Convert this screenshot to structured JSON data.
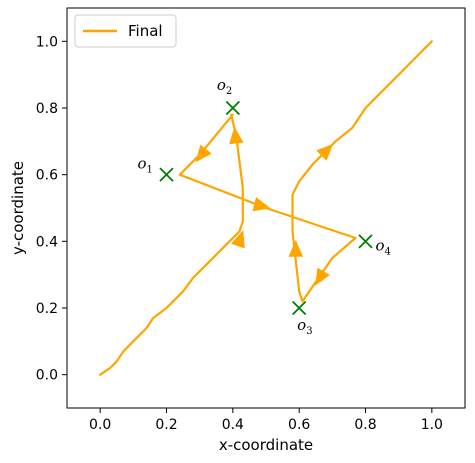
{
  "chart_data": {
    "type": "line",
    "title": "",
    "xlabel": "x-coordinate",
    "ylabel": "y-coordinate",
    "xlim": [
      -0.1,
      1.1
    ],
    "ylim": [
      -0.1,
      1.1
    ],
    "xticks": [
      "0.0",
      "0.2",
      "0.4",
      "0.6",
      "0.8",
      "1.0"
    ],
    "yticks": [
      "0.0",
      "0.2",
      "0.4",
      "0.6",
      "0.8",
      "1.0"
    ],
    "grid": false,
    "legend": {
      "position": "top-left",
      "entries": [
        "Final"
      ]
    },
    "series": [
      {
        "name": "Final",
        "color": "#FFA500",
        "points": [
          [
            0.0,
            0.0
          ],
          [
            0.03,
            0.02
          ],
          [
            0.05,
            0.04
          ],
          [
            0.07,
            0.07
          ],
          [
            0.1,
            0.1
          ],
          [
            0.14,
            0.14
          ],
          [
            0.16,
            0.17
          ],
          [
            0.2,
            0.2
          ],
          [
            0.25,
            0.25
          ],
          [
            0.28,
            0.29
          ],
          [
            0.32,
            0.33
          ],
          [
            0.36,
            0.37
          ],
          [
            0.42,
            0.43
          ],
          [
            0.43,
            0.46
          ],
          [
            0.43,
            0.56
          ],
          [
            0.41,
            0.72
          ],
          [
            0.395,
            0.78
          ],
          [
            0.4,
            0.78
          ],
          [
            0.3,
            0.66
          ],
          [
            0.24,
            0.6
          ],
          [
            0.5,
            0.5
          ],
          [
            0.77,
            0.41
          ],
          [
            0.7,
            0.35
          ],
          [
            0.61,
            0.22
          ],
          [
            0.6,
            0.25
          ],
          [
            0.58,
            0.43
          ],
          [
            0.58,
            0.54
          ],
          [
            0.6,
            0.58
          ],
          [
            0.64,
            0.63
          ],
          [
            0.71,
            0.7
          ],
          [
            0.76,
            0.74
          ],
          [
            0.8,
            0.8
          ],
          [
            0.85,
            0.85
          ],
          [
            0.9,
            0.9
          ],
          [
            0.95,
            0.95
          ],
          [
            1.0,
            1.0
          ]
        ]
      }
    ],
    "arrows": [
      {
        "from": [
          0.42,
          0.4
        ],
        "to": [
          0.43,
          0.43
        ]
      },
      {
        "from": [
          0.41,
          0.7
        ],
        "to": [
          0.405,
          0.74
        ]
      },
      {
        "from": [
          0.33,
          0.69
        ],
        "to": [
          0.29,
          0.64
        ]
      },
      {
        "from": [
          0.45,
          0.515
        ],
        "to": [
          0.51,
          0.5
        ]
      },
      {
        "from": [
          0.68,
          0.32
        ],
        "to": [
          0.65,
          0.27
        ]
      },
      {
        "from": [
          0.59,
          0.36
        ],
        "to": [
          0.59,
          0.4
        ]
      },
      {
        "from": [
          0.66,
          0.65
        ],
        "to": [
          0.7,
          0.69
        ]
      }
    ],
    "marker_color": "#008000",
    "observations": [
      {
        "label": "o",
        "sub": "1",
        "x": 0.2,
        "y": 0.6
      },
      {
        "label": "o",
        "sub": "2",
        "x": 0.4,
        "y": 0.8
      },
      {
        "label": "o",
        "sub": "3",
        "x": 0.6,
        "y": 0.2
      },
      {
        "label": "o",
        "sub": "4",
        "x": 0.8,
        "y": 0.4
      }
    ]
  }
}
